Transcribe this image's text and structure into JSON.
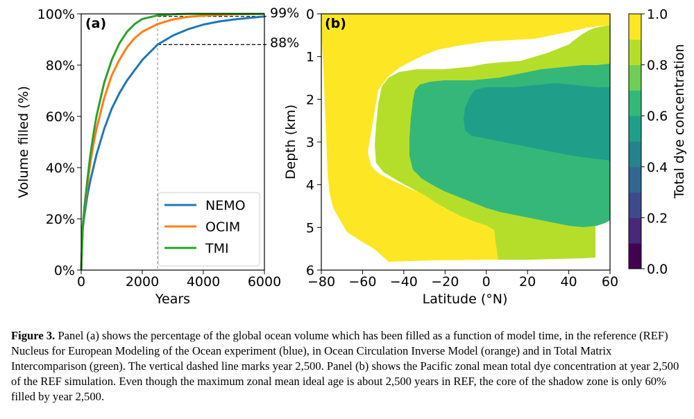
{
  "chart_data": [
    {
      "type": "line",
      "panel_label": "(a)",
      "xlabel": "Years",
      "ylabel": "Volume filled (%)",
      "xlim": [
        0,
        6000
      ],
      "ylim": [
        0,
        100
      ],
      "xticks": [
        "0",
        "2000",
        "4000",
        "6000"
      ],
      "yticks": [
        "0%",
        "20%",
        "40%",
        "60%",
        "80%",
        "100%"
      ],
      "legend_position": "lower-right",
      "vline_x": 2500,
      "annotations": [
        "99%",
        "88%"
      ],
      "series": [
        {
          "name": "NEMO",
          "color": "#1f77b4",
          "x": [
            0,
            50,
            100,
            200,
            300,
            400,
            500,
            750,
            1000,
            1250,
            1500,
            1750,
            2000,
            2500,
            3000,
            3500,
            4000,
            4500,
            5000,
            5500,
            6000
          ],
          "y": [
            0,
            16,
            21,
            29,
            35,
            40,
            45,
            55,
            63,
            69,
            74,
            78,
            82,
            88,
            91.5,
            94,
            95.8,
            97,
            97.8,
            98.4,
            99
          ]
        },
        {
          "name": "OCIM",
          "color": "#ff7f0e",
          "x": [
            0,
            50,
            100,
            200,
            300,
            400,
            500,
            750,
            1000,
            1250,
            1500,
            1750,
            2000,
            2500,
            3000,
            3500,
            4000,
            4500,
            5000,
            5500,
            6000
          ],
          "y": [
            0,
            17,
            23,
            33,
            42,
            49,
            55,
            67,
            76,
            82,
            87,
            90.5,
            93,
            96,
            97.8,
            98.8,
            99.3,
            99.6,
            99.8,
            99.9,
            100
          ]
        },
        {
          "name": "TMI",
          "color": "#2ca02c",
          "x": [
            0,
            50,
            100,
            200,
            300,
            400,
            500,
            750,
            1000,
            1250,
            1500,
            1750,
            2000,
            2500,
            3000,
            3500,
            4000,
            4500,
            5000,
            5500,
            6000
          ],
          "y": [
            0,
            17,
            24,
            35,
            45,
            53,
            60,
            73,
            82,
            88.5,
            93,
            96,
            98,
            99.4,
            99.8,
            100,
            100,
            100,
            100,
            100,
            100
          ]
        }
      ]
    },
    {
      "type": "heatmap",
      "panel_label": "(b)",
      "xlabel": "Latitude (°N)",
      "ylabel": "Depth (km)",
      "xlim": [
        -80,
        60
      ],
      "ylim": [
        6,
        0
      ],
      "xticks": [
        "−80",
        "−60",
        "−40",
        "−20",
        "0",
        "20",
        "40",
        "60"
      ],
      "yticks": [
        "0",
        "1",
        "2",
        "3",
        "4",
        "5",
        "6"
      ],
      "colorbar_label": "Total dye concentration",
      "colorbar_ticks": [
        "0.0",
        "0.2",
        "0.4",
        "0.6",
        "0.8",
        "1.0"
      ],
      "colorbar_colors": [
        "#440154",
        "#482878",
        "#3e4a89",
        "#31688e",
        "#26828e",
        "#1f9e89",
        "#35b779",
        "#6ece58",
        "#b5de2b",
        "#fde725"
      ],
      "shown_levels": [
        "1.0",
        "0.9",
        "0.8",
        "0.7"
      ]
    }
  ],
  "caption": {
    "label": "Figure 3.",
    "text": "Panel (a) shows the percentage of the global ocean volume which has been filled as a function of model time, in the reference (REF) Nucleus for European Modeling of the Ocean experiment (blue), in Ocean Circulation Inverse Model (orange) and in Total Matrix Intercomparison (green). The vertical dashed line marks year 2,500. Panel (b) shows the Pacific zonal mean total dye concentration at year 2,500 of the REF simulation. Even though the maximum zonal mean ideal age is about 2,500 years in REF, the core of the shadow zone is only 60% filled by year 2,500."
  }
}
